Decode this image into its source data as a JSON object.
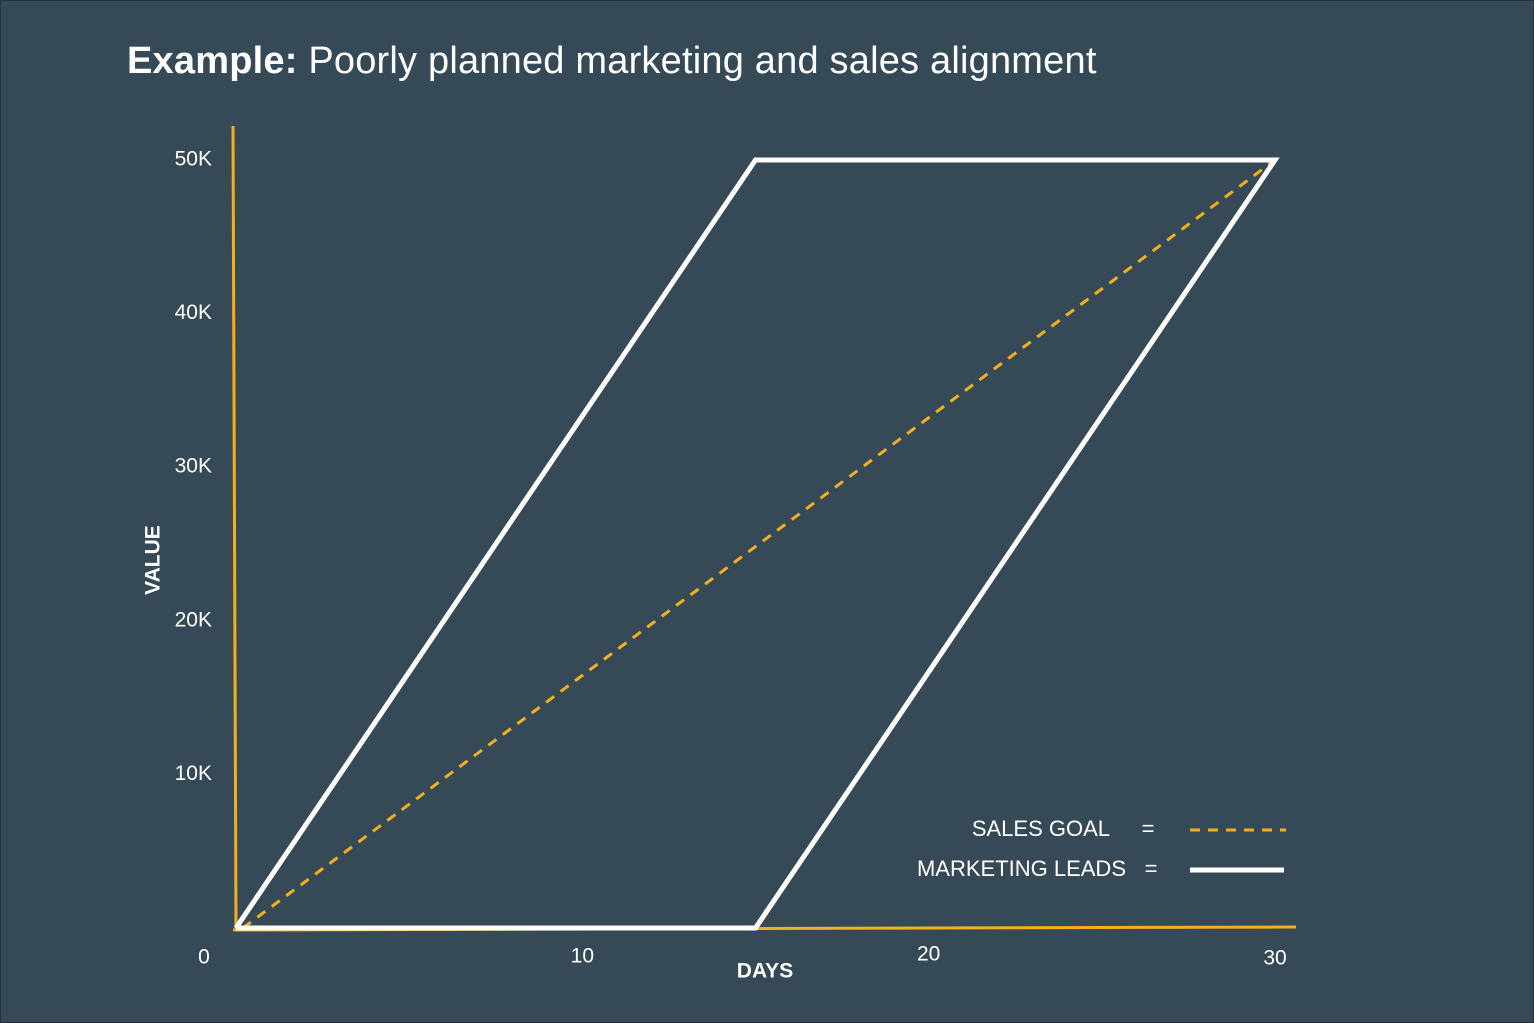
{
  "title": {
    "bold": "Example:",
    "rest": " Poorly planned marketing and sales alignment"
  },
  "colors": {
    "background": "#364956",
    "axis": "#F2B01E",
    "sales_goal": "#F2B01E",
    "marketing_leads": "#FFFFFF"
  },
  "chart_data": {
    "type": "line",
    "xlabel": "DAYS",
    "ylabel": "VALUE",
    "xlim": [
      0,
      30
    ],
    "ylim": [
      0,
      50000
    ],
    "x_ticks": [
      {
        "value": 0,
        "label": "0"
      },
      {
        "value": 10,
        "label": "10"
      },
      {
        "value": 20,
        "label": "20"
      },
      {
        "value": 30,
        "label": "30"
      }
    ],
    "y_ticks": [
      {
        "value": 10000,
        "label": "10K"
      },
      {
        "value": 20000,
        "label": "20K"
      },
      {
        "value": 30000,
        "label": "30K"
      },
      {
        "value": 40000,
        "label": "40K"
      },
      {
        "value": 50000,
        "label": "50K"
      }
    ],
    "grid": false,
    "legend_position": "bottom-right",
    "series": [
      {
        "name": "SALES GOAL",
        "style": "dashed",
        "color": "#F2B01E",
        "points": [
          [
            0.2,
            0
          ],
          [
            30,
            50000
          ]
        ]
      },
      {
        "name": "MARKETING LEADS",
        "style": "solid",
        "color": "#FFFFFF",
        "points": [
          [
            0,
            0
          ],
          [
            15,
            50000
          ],
          [
            30,
            50000
          ],
          [
            15,
            0
          ],
          [
            0,
            0
          ]
        ]
      }
    ],
    "legend": [
      {
        "label": "SALES GOAL",
        "sep": "=",
        "style": "dashed",
        "color": "#F2B01E"
      },
      {
        "label": "MARKETING LEADS",
        "sep": "=",
        "style": "solid",
        "color": "#FFFFFF"
      }
    ]
  }
}
